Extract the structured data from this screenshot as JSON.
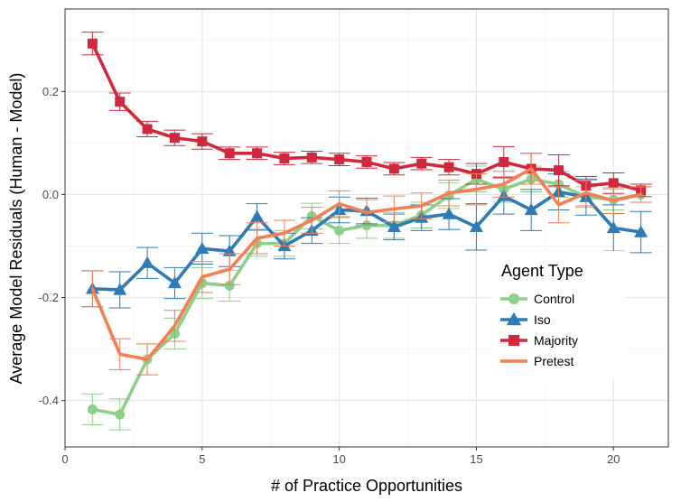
{
  "chart_data": {
    "type": "line",
    "xlabel": "# of Practice Opportunities",
    "ylabel": "Average Model Residuals (Human - Model)",
    "xlim": [
      0,
      22
    ],
    "ylim": [
      -0.49,
      0.36
    ],
    "x_ticks": [
      0,
      5,
      10,
      15,
      20
    ],
    "x_tick_labels": [
      "0",
      "5",
      "10",
      "15",
      "20"
    ],
    "y_ticks": [
      -0.4,
      -0.2,
      0.0,
      0.2
    ],
    "y_tick_labels": [
      "-0.4",
      "-0.2",
      "0.0",
      "0.2"
    ],
    "grid": true,
    "legend_title": "Agent Type",
    "legend_position": "right",
    "x": [
      1,
      2,
      3,
      4,
      5,
      6,
      7,
      8,
      9,
      10,
      11,
      12,
      13,
      14,
      15,
      16,
      17,
      18,
      19,
      20,
      21
    ],
    "series": [
      {
        "name": "Control",
        "color": "#8dd08a",
        "marker": "circle",
        "values": [
          -0.417,
          -0.427,
          -0.32,
          -0.27,
          -0.172,
          -0.177,
          -0.095,
          -0.095,
          -0.042,
          -0.07,
          -0.06,
          -0.06,
          -0.04,
          -0.002,
          0.03,
          0.01,
          0.03,
          0.02,
          -0.005,
          -0.01,
          0.0
        ],
        "errors": [
          0.03,
          0.03,
          0.03,
          0.03,
          0.03,
          0.03,
          0.025,
          0.025,
          0.025,
          0.025,
          0.025,
          0.025,
          0.025,
          0.025,
          0.025,
          0.025,
          0.025,
          0.025,
          0.02,
          0.02,
          0.015
        ]
      },
      {
        "name": "Iso",
        "color": "#2f7bb5",
        "marker": "triangle",
        "values": [
          -0.183,
          -0.185,
          -0.133,
          -0.172,
          -0.105,
          -0.11,
          -0.043,
          -0.1,
          -0.07,
          -0.03,
          -0.032,
          -0.063,
          -0.045,
          -0.038,
          -0.063,
          -0.003,
          -0.03,
          0.005,
          -0.005,
          -0.065,
          -0.073
        ],
        "errors": [
          0.035,
          0.035,
          0.03,
          0.03,
          0.03,
          0.03,
          0.025,
          0.025,
          0.025,
          0.025,
          0.025,
          0.025,
          0.025,
          0.03,
          0.045,
          0.035,
          0.04,
          0.035,
          0.035,
          0.045,
          0.04
        ]
      },
      {
        "name": "Majority",
        "color": "#d0283d",
        "marker": "square",
        "values": [
          0.293,
          0.18,
          0.127,
          0.11,
          0.103,
          0.08,
          0.08,
          0.07,
          0.072,
          0.068,
          0.063,
          0.05,
          0.06,
          0.053,
          0.04,
          0.063,
          0.05,
          0.047,
          0.017,
          0.022,
          0.008
        ],
        "errors": [
          0.022,
          0.017,
          0.015,
          0.015,
          0.015,
          0.012,
          0.012,
          0.012,
          0.012,
          0.012,
          0.012,
          0.012,
          0.012,
          0.015,
          0.02,
          0.03,
          0.03,
          0.03,
          0.018,
          0.02,
          0.012
        ]
      },
      {
        "name": "Pretest",
        "color": "#f47f53",
        "marker": "line",
        "values": [
          -0.183,
          -0.31,
          -0.32,
          -0.255,
          -0.16,
          -0.145,
          -0.085,
          -0.075,
          -0.05,
          -0.018,
          -0.035,
          -0.028,
          -0.022,
          0.003,
          0.01,
          0.02,
          0.05,
          -0.02,
          0.003,
          -0.012,
          0.0
        ],
        "errors": [
          0.035,
          0.03,
          0.03,
          0.03,
          0.03,
          0.03,
          0.03,
          0.025,
          0.025,
          0.025,
          0.025,
          0.025,
          0.025,
          0.025,
          0.03,
          0.025,
          0.03,
          0.035,
          0.025,
          0.025,
          0.015
        ]
      }
    ]
  }
}
